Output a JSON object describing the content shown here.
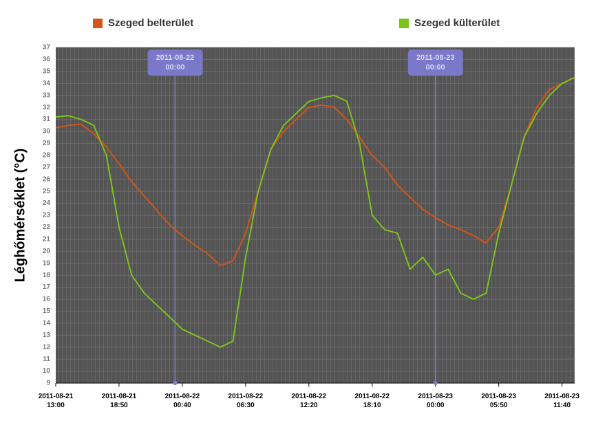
{
  "chart_data": {
    "type": "line",
    "y_label": "Léghőmérséklet (°C)",
    "x": [
      "2011-08-21 13:00",
      "2011-08-21 14:10",
      "2011-08-21 15:20",
      "2011-08-21 16:30",
      "2011-08-21 17:40",
      "2011-08-21 18:50",
      "2011-08-21 20:00",
      "2011-08-21 21:10",
      "2011-08-21 22:20",
      "2011-08-21 23:30",
      "2011-08-22 00:40",
      "2011-08-22 01:50",
      "2011-08-22 03:00",
      "2011-08-22 04:10",
      "2011-08-22 05:20",
      "2011-08-22 06:30",
      "2011-08-22 07:40",
      "2011-08-22 08:50",
      "2011-08-22 10:00",
      "2011-08-22 11:10",
      "2011-08-22 12:20",
      "2011-08-22 13:30",
      "2011-08-22 14:40",
      "2011-08-22 15:50",
      "2011-08-22 17:00",
      "2011-08-22 18:10",
      "2011-08-22 19:20",
      "2011-08-22 20:30",
      "2011-08-22 21:40",
      "2011-08-22 22:50",
      "2011-08-23 00:00",
      "2011-08-23 01:10",
      "2011-08-23 02:20",
      "2011-08-23 03:30",
      "2011-08-23 04:40",
      "2011-08-23 05:50",
      "2011-08-23 07:00",
      "2011-08-23 08:10",
      "2011-08-23 09:20",
      "2011-08-23 10:30",
      "2011-08-23 11:40",
      "2011-08-23 12:50"
    ],
    "series": [
      {
        "name": "Szeged belterület",
        "color": "#d4541a",
        "values": [
          30.3,
          30.5,
          30.6,
          29.8,
          28.7,
          27.3,
          25.8,
          24.6,
          23.4,
          22.2,
          21.3,
          20.5,
          19.8,
          18.8,
          19.2,
          21.5,
          25.0,
          28.5,
          30.0,
          31.0,
          32.0,
          32.2,
          32.0,
          31.0,
          29.5,
          28.0,
          27.0,
          25.5,
          24.5,
          23.5,
          22.8,
          22.2,
          21.8,
          21.3,
          20.7,
          22.0,
          25.5,
          29.5,
          32.0,
          33.5,
          34.0,
          34.5
        ]
      },
      {
        "name": "Szeged külterület",
        "color": "#7dc31e",
        "values": [
          31.2,
          31.3,
          31.0,
          30.5,
          28.0,
          22.0,
          18.0,
          16.5,
          15.5,
          14.5,
          13.5,
          13.0,
          12.5,
          12.0,
          12.5,
          19.5,
          25.0,
          28.5,
          30.5,
          31.5,
          32.5,
          32.8,
          33.0,
          32.5,
          29.0,
          23.0,
          21.8,
          21.5,
          18.5,
          19.5,
          18.0,
          18.5,
          16.5,
          16.0,
          16.5,
          21.5,
          25.5,
          29.5,
          31.5,
          33.0,
          34.0,
          34.5
        ]
      }
    ],
    "xlim": [
      "2011-08-21 13:00",
      "2011-08-23 12:50"
    ],
    "xticks": [
      {
        "value": "2011-08-21 13:00",
        "label": "2011-08-21\n13:00"
      },
      {
        "value": "2011-08-21 18:50",
        "label": "2011-08-21\n18:50"
      },
      {
        "value": "2011-08-22 00:40",
        "label": "2011-08-22\n00:40"
      },
      {
        "value": "2011-08-22 06:30",
        "label": "2011-08-22\n06:30"
      },
      {
        "value": "2011-08-22 12:20",
        "label": "2011-08-22\n12:20"
      },
      {
        "value": "2011-08-22 18:10",
        "label": "2011-08-22\n18:10"
      },
      {
        "value": "2011-08-23 00:00",
        "label": "2011-08-23\n00:00"
      },
      {
        "value": "2011-08-23 05:50",
        "label": "2011-08-23\n05:50"
      },
      {
        "value": "2011-08-23 11:40",
        "label": "2011-08-23\n11:40"
      }
    ],
    "ylim": [
      9,
      37
    ],
    "yticks": [
      9,
      10,
      11,
      12,
      13,
      14,
      15,
      16,
      17,
      18,
      19,
      20,
      21,
      22,
      23,
      24,
      25,
      26,
      27,
      28,
      29,
      30,
      31,
      32,
      33,
      34,
      35,
      36,
      37
    ],
    "grid": true,
    "annotations": [
      {
        "value": "2011-08-22 00:00",
        "label": "2011-08-22\n00:00"
      },
      {
        "value": "2011-08-23 00:00",
        "label": "2011-08-23\n00:00"
      }
    ]
  }
}
